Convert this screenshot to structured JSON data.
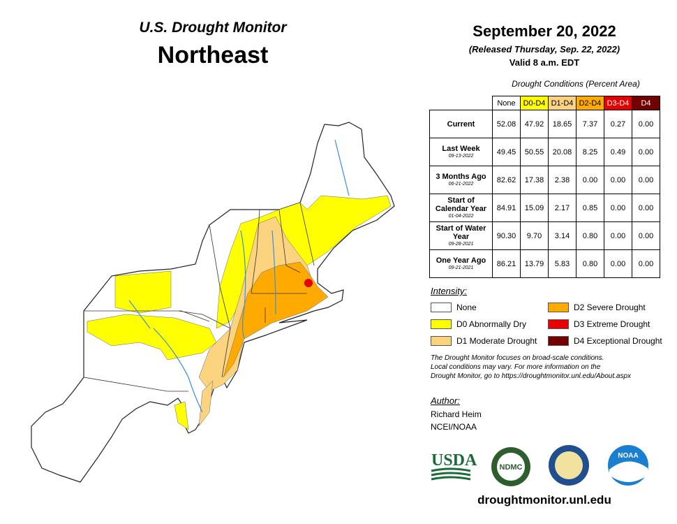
{
  "header": {
    "title": "U.S. Drought Monitor",
    "region": "Northeast",
    "date": "September 20, 2022",
    "released": "(Released Thursday, Sep. 22, 2022)",
    "valid": "Valid 8 a.m. EDT"
  },
  "table": {
    "caption": "Drought Conditions (Percent Area)",
    "columns": [
      {
        "label": "None",
        "color": "#ffffff",
        "text": "#000000"
      },
      {
        "label": "D0-D4",
        "color": "#ffff00",
        "text": "#000000"
      },
      {
        "label": "D1-D4",
        "color": "#fcd37f",
        "text": "#000000"
      },
      {
        "label": "D2-D4",
        "color": "#ffaa00",
        "text": "#000000"
      },
      {
        "label": "D3-D4",
        "color": "#e60000",
        "text": "#ffffff"
      },
      {
        "label": "D4",
        "color": "#730000",
        "text": "#ffffff"
      }
    ],
    "rows": [
      {
        "label": "Current",
        "values": [
          "52.08",
          "47.92",
          "18.65",
          "7.37",
          "0.27",
          "0.00"
        ]
      },
      {
        "label": "Last Week",
        "date": "09-13-2022",
        "values": [
          "49.45",
          "50.55",
          "20.08",
          "8.25",
          "0.49",
          "0.00"
        ]
      },
      {
        "label": "3 Months Ago",
        "date": "06-21-2022",
        "values": [
          "82.62",
          "17.38",
          "2.38",
          "0.00",
          "0.00",
          "0.00"
        ]
      },
      {
        "label": "Start of Calendar Year",
        "date": "01-04-2022",
        "values": [
          "84.91",
          "15.09",
          "2.17",
          "0.85",
          "0.00",
          "0.00"
        ]
      },
      {
        "label": "Start of Water Year",
        "date": "09-28-2021",
        "values": [
          "90.30",
          "9.70",
          "3.14",
          "0.80",
          "0.00",
          "0.00"
        ]
      },
      {
        "label": "One Year Ago",
        "date": "09-21-2021",
        "values": [
          "86.21",
          "13.79",
          "5.83",
          "0.80",
          "0.00",
          "0.00"
        ]
      }
    ]
  },
  "legend": {
    "title": "Intensity:",
    "items": [
      {
        "label": "None",
        "color": "#ffffff"
      },
      {
        "label": "D0 Abnormally Dry",
        "color": "#ffff00"
      },
      {
        "label": "D1 Moderate Drought",
        "color": "#fcd37f"
      },
      {
        "label": "D2 Severe Drought",
        "color": "#ffaa00"
      },
      {
        "label": "D3 Extreme Drought",
        "color": "#e60000"
      },
      {
        "label": "D4 Exceptional Drought",
        "color": "#730000"
      }
    ]
  },
  "note": [
    "The Drought Monitor focuses on broad-scale conditions.",
    "Local conditions may vary. For more information on the",
    "Drought Monitor, go to https://droughtmonitor.unl.edu/About.aspx"
  ],
  "author": {
    "title": "Author:",
    "name": "Richard Heim",
    "org": "NCEI/NOAA"
  },
  "logos": {
    "usda": "USDA",
    "ndmc": "NDMC",
    "noaa": "NOAA"
  },
  "url": "droughtmonitor.unl.edu"
}
